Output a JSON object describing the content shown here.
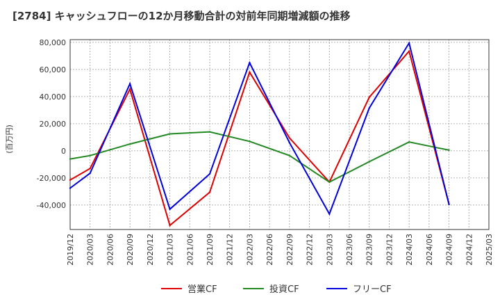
{
  "chart_data": {
    "type": "line",
    "title": "[2784]  キャッシュフローの12か月移動合計の対前年同期増減額の推移",
    "ylabel": "(百万円)",
    "xlabel": "",
    "ylim": [
      -58000,
      82000
    ],
    "yticks": [
      80000,
      60000,
      40000,
      20000,
      0,
      -20000,
      -40000
    ],
    "ytick_labels": [
      "80,000",
      "60,000",
      "40,000",
      "20,000",
      "0",
      "-20,000",
      "-40,000"
    ],
    "x_ticks": [
      "2019/12",
      "2020/03",
      "2020/06",
      "2020/09",
      "2020/12",
      "2021/03",
      "2021/06",
      "2021/09",
      "2021/12",
      "2022/03",
      "2022/06",
      "2022/09",
      "2022/12",
      "2023/03",
      "2023/06",
      "2023/09",
      "2023/12",
      "2024/03",
      "2024/06",
      "2024/09",
      "2024/12",
      "2025/03"
    ],
    "grid": true,
    "legend_position": "bottom",
    "series": [
      {
        "name": "営業CF",
        "color": "#dd0000",
        "points": [
          {
            "x": "2019/12",
            "y": -21500
          },
          {
            "x": "2020/03",
            "y": -13000
          },
          {
            "x": "2020/09",
            "y": 45500
          },
          {
            "x": "2021/03",
            "y": -55000
          },
          {
            "x": "2021/09",
            "y": -30500
          },
          {
            "x": "2022/03",
            "y": 58000
          },
          {
            "x": "2022/09",
            "y": 9500
          },
          {
            "x": "2023/03",
            "y": -23000
          },
          {
            "x": "2023/09",
            "y": 39500
          },
          {
            "x": "2024/03",
            "y": 73500
          },
          {
            "x": "2024/09",
            "y": -39500
          }
        ]
      },
      {
        "name": "投資CF",
        "color": "#228822",
        "points": [
          {
            "x": "2019/12",
            "y": -6000
          },
          {
            "x": "2020/03",
            "y": -3500
          },
          {
            "x": "2020/09",
            "y": 5000
          },
          {
            "x": "2021/03",
            "y": 12500
          },
          {
            "x": "2021/09",
            "y": 14000
          },
          {
            "x": "2022/03",
            "y": 7000
          },
          {
            "x": "2022/09",
            "y": -3500
          },
          {
            "x": "2023/03",
            "y": -23000
          },
          {
            "x": "2023/09",
            "y": -8000
          },
          {
            "x": "2024/03",
            "y": 6500
          },
          {
            "x": "2024/09",
            "y": 500
          }
        ]
      },
      {
        "name": "フリーCF",
        "color": "#0000dd",
        "points": [
          {
            "x": "2019/12",
            "y": -27500
          },
          {
            "x": "2020/03",
            "y": -16500
          },
          {
            "x": "2020/09",
            "y": 49500
          },
          {
            "x": "2021/03",
            "y": -43000
          },
          {
            "x": "2021/09",
            "y": -17000
          },
          {
            "x": "2022/03",
            "y": 65000
          },
          {
            "x": "2022/09",
            "y": 6000
          },
          {
            "x": "2023/03",
            "y": -46500
          },
          {
            "x": "2023/09",
            "y": 31500
          },
          {
            "x": "2024/03",
            "y": 79500
          },
          {
            "x": "2024/09",
            "y": -39500
          }
        ]
      }
    ]
  }
}
